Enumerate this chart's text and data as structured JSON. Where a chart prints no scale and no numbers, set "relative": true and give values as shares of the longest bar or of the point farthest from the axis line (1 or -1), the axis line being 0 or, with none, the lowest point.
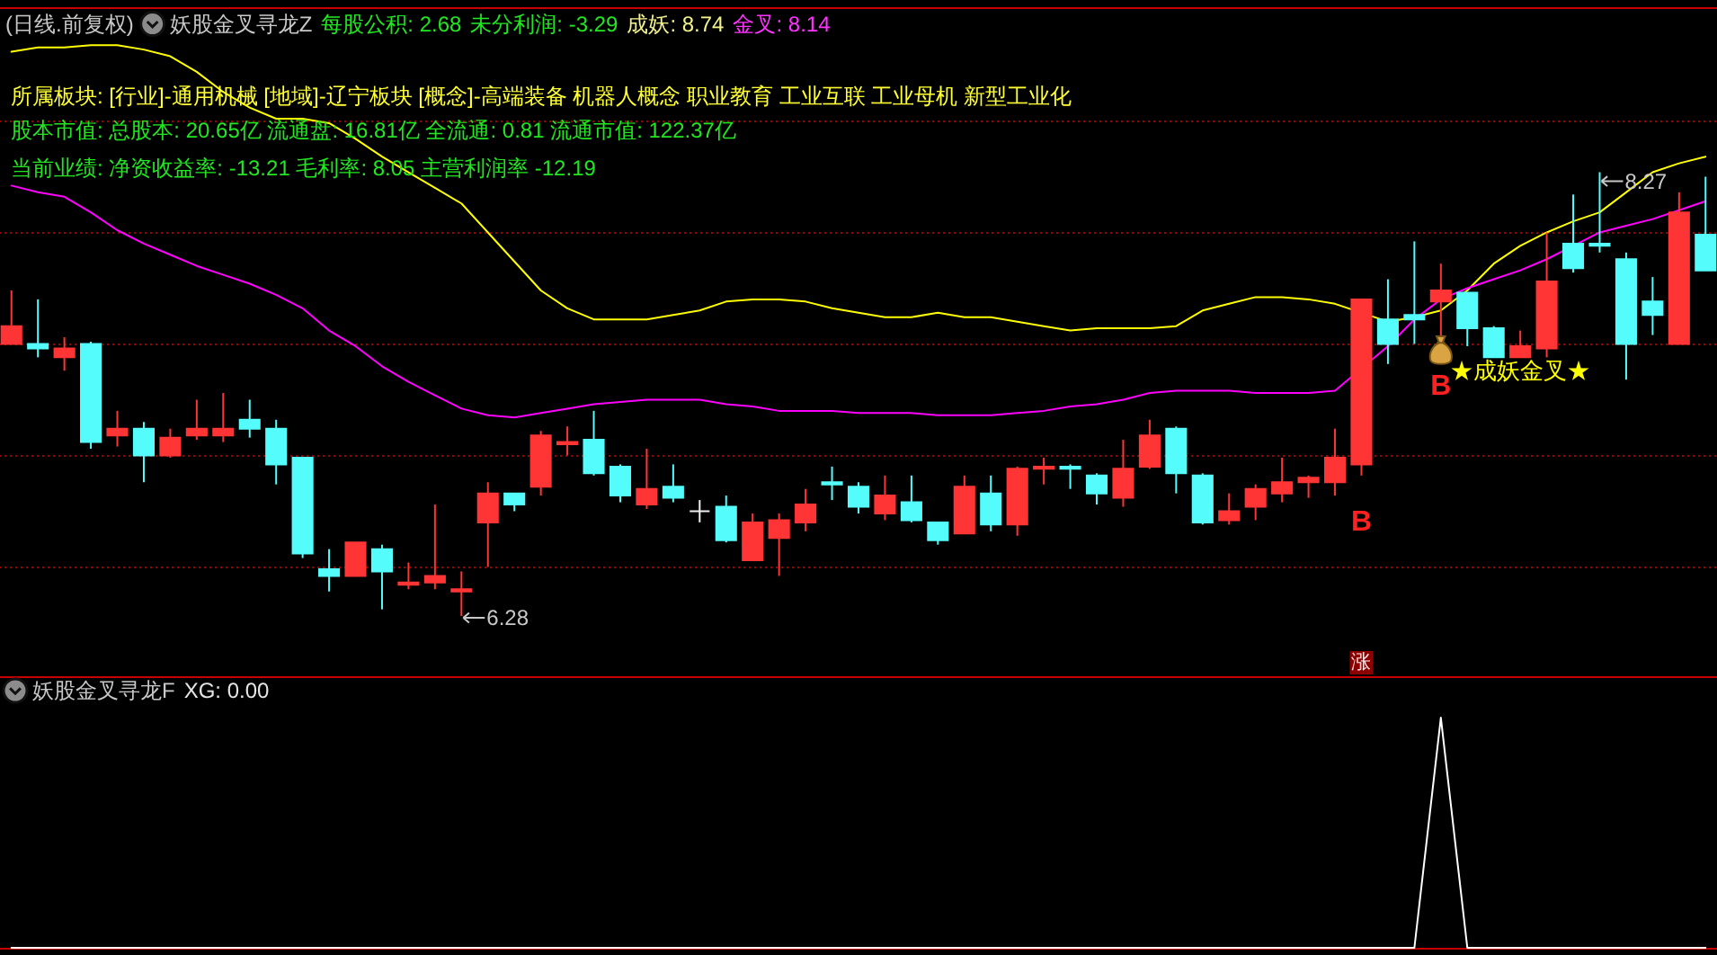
{
  "chart_data": [
    {
      "type": "candlestick",
      "title": "(日线.前复权)",
      "annotations": [
        "妖股金叉寻龙Z",
        "每股公积: 2.68",
        "未分利润: -3.29",
        "成妖: 8.74",
        "金叉: 8.14",
        "所属板块: [行业]-通用机械 [地域]-辽宁板块 [概念]-高端装备 机器人概念 职业教育 工业互联 工业母机 新型工业化",
        "股本市值: 总股本: 20.65亿 流通盘: 16.81亿 全流通: 0.81 流通市值: 122.37亿",
        "当前业绩: 净资收益率: -13.21 毛利率: 8.05 主营利润率 -12.19",
        "8.27",
        "6.28",
        "B",
        "B",
        "★成妖金叉★",
        "涨"
      ],
      "categories": [
        null,
        null,
        null,
        null,
        null,
        null,
        null,
        null,
        null,
        null,
        null,
        null,
        null,
        null,
        null,
        null,
        null,
        null,
        null,
        null,
        null,
        null,
        null,
        null,
        null,
        null,
        null,
        null,
        null,
        null,
        null,
        null,
        null,
        null,
        null,
        null,
        null,
        null,
        null,
        null,
        null,
        null,
        null,
        null,
        null,
        null,
        null,
        null,
        null,
        null,
        null,
        null,
        null,
        null,
        null,
        null,
        null,
        null,
        null,
        null,
        null,
        null,
        null,
        null,
        null
      ],
      "ohlc": [
        [
          7.5,
          7.74,
          7.5,
          7.58
        ],
        [
          7.5,
          7.7,
          7.44,
          7.48
        ],
        [
          7.44,
          7.53,
          7.38,
          7.48
        ],
        [
          7.5,
          7.51,
          7.03,
          7.06
        ],
        [
          7.09,
          7.2,
          7.04,
          7.12
        ],
        [
          7.12,
          7.15,
          6.88,
          7.0
        ],
        [
          7.0,
          7.12,
          6.99,
          7.08
        ],
        [
          7.09,
          7.25,
          7.07,
          7.12
        ],
        [
          7.09,
          7.28,
          7.06,
          7.12
        ],
        [
          7.16,
          7.25,
          7.08,
          7.12
        ],
        [
          7.12,
          7.16,
          6.87,
          6.96
        ],
        [
          6.99,
          6.99,
          6.54,
          6.56
        ],
        [
          6.49,
          6.58,
          6.39,
          6.46
        ],
        [
          6.46,
          6.61,
          6.46,
          6.61
        ],
        [
          6.58,
          6.6,
          6.31,
          6.48
        ],
        [
          6.42,
          6.52,
          6.4,
          6.43
        ],
        [
          6.43,
          6.78,
          6.4,
          6.46
        ],
        [
          6.39,
          6.48,
          6.28,
          6.4
        ],
        [
          6.7,
          6.88,
          6.5,
          6.83
        ],
        [
          6.83,
          6.83,
          6.75,
          6.78
        ],
        [
          6.86,
          7.11,
          6.82,
          7.09
        ],
        [
          7.05,
          7.13,
          7.0,
          7.06
        ],
        [
          7.07,
          7.2,
          6.91,
          6.92
        ],
        [
          6.95,
          6.96,
          6.79,
          6.82
        ],
        [
          6.78,
          7.03,
          6.76,
          6.85
        ],
        [
          6.86,
          6.96,
          6.79,
          6.81
        ],
        [
          6.75,
          6.8,
          6.7,
          6.75
        ],
        [
          6.77,
          6.82,
          6.61,
          6.62
        ],
        [
          6.53,
          6.74,
          6.53,
          6.7
        ],
        [
          6.63,
          6.74,
          6.46,
          6.71
        ],
        [
          6.7,
          6.85,
          6.66,
          6.78
        ],
        [
          6.88,
          6.95,
          6.8,
          6.87
        ],
        [
          6.86,
          6.88,
          6.74,
          6.77
        ],
        [
          6.74,
          6.91,
          6.71,
          6.82
        ],
        [
          6.79,
          6.91,
          6.7,
          6.71
        ],
        [
          6.7,
          6.7,
          6.6,
          6.62
        ],
        [
          6.65,
          6.91,
          6.65,
          6.86
        ],
        [
          6.83,
          6.91,
          6.66,
          6.69
        ],
        [
          6.69,
          6.95,
          6.64,
          6.94
        ],
        [
          6.94,
          6.99,
          6.87,
          6.95
        ],
        [
          6.95,
          6.96,
          6.85,
          6.94
        ],
        [
          6.91,
          6.92,
          6.78,
          6.83
        ],
        [
          6.81,
          7.07,
          6.77,
          6.94
        ],
        [
          6.95,
          7.16,
          6.94,
          7.09
        ],
        [
          7.12,
          7.13,
          6.83,
          6.92
        ],
        [
          6.91,
          6.92,
          6.69,
          6.7
        ],
        [
          6.71,
          6.83,
          6.69,
          6.75
        ],
        [
          6.77,
          6.87,
          6.71,
          6.85
        ],
        [
          6.83,
          6.99,
          6.79,
          6.88
        ],
        [
          6.88,
          6.91,
          6.81,
          6.9
        ],
        [
          6.88,
          7.12,
          6.82,
          6.99
        ],
        [
          6.96,
          7.7,
          6.91,
          7.7
        ],
        [
          7.61,
          7.79,
          7.41,
          7.5
        ],
        [
          7.63,
          7.96,
          7.5,
          7.61
        ],
        [
          7.69,
          7.86,
          7.53,
          7.74
        ],
        [
          7.73,
          7.73,
          7.49,
          7.57
        ],
        [
          7.57,
          7.58,
          7.44,
          7.44
        ],
        [
          7.44,
          7.56,
          7.44,
          7.49
        ],
        [
          7.48,
          8.0,
          7.44,
          7.78
        ],
        [
          7.95,
          8.17,
          7.82,
          7.84
        ],
        [
          7.95,
          8.27,
          7.91,
          7.94
        ],
        [
          7.88,
          7.91,
          7.34,
          7.5
        ],
        [
          7.69,
          7.8,
          7.54,
          7.63
        ],
        [
          7.5,
          8.18,
          7.5,
          8.09
        ],
        [
          7.99,
          8.25,
          7.83,
          7.83
        ]
      ],
      "series": [
        {
          "type": "line",
          "color": "#ffff00",
          "values": [
            8.81,
            8.83,
            8.83,
            8.84,
            8.84,
            8.82,
            8.79,
            8.72,
            8.63,
            8.56,
            8.51,
            8.51,
            8.49,
            8.42,
            8.34,
            8.27,
            8.2,
            8.13,
            8.0,
            7.87,
            7.74,
            7.66,
            7.61,
            7.61,
            7.61,
            7.63,
            7.65,
            7.69,
            7.7,
            7.7,
            7.69,
            7.66,
            7.64,
            7.62,
            7.62,
            7.64,
            7.62,
            7.62,
            7.6,
            7.58,
            7.56,
            7.57,
            7.57,
            7.57,
            7.58,
            7.65,
            7.68,
            7.71,
            7.71,
            7.7,
            7.68,
            null,
            7.6,
            7.62,
            7.65,
            7.74,
            7.86,
            7.94,
            8.0,
            8.05,
            8.09,
            8.18,
            8.27,
            8.31,
            8.34
          ]
        },
        {
          "type": "line",
          "color": "#ff00ff",
          "values": [
            8.21,
            8.18,
            8.16,
            8.09,
            8.01,
            7.95,
            7.9,
            7.85,
            7.81,
            7.77,
            7.72,
            7.66,
            7.56,
            7.49,
            7.4,
            7.33,
            7.27,
            7.21,
            7.18,
            7.17,
            7.19,
            7.21,
            7.23,
            7.24,
            7.25,
            7.25,
            7.25,
            7.23,
            7.22,
            7.2,
            7.2,
            7.2,
            7.19,
            7.19,
            7.19,
            7.18,
            7.18,
            7.18,
            7.19,
            7.2,
            7.22,
            7.23,
            7.25,
            7.28,
            7.29,
            7.29,
            7.29,
            7.28,
            7.28,
            7.28,
            7.29,
            null,
            7.49,
            7.61,
            7.7,
            7.75,
            7.79,
            7.83,
            7.88,
            7.94,
            8.0,
            8.03,
            8.06,
            8.1,
            8.14
          ]
        }
      ],
      "ylim": [
        6.01,
        9.01
      ],
      "yticks": [
        {
          "value": 6.5,
          "label": null
        },
        {
          "value": 7,
          "label": null
        },
        {
          "value": 7.5,
          "label": null
        },
        {
          "value": 8,
          "label": null
        },
        {
          "value": 8.5,
          "label": null
        }
      ],
      "grid": "y"
    },
    {
      "type": "line",
      "title": "妖股金叉寻龙F",
      "annotations": [
        "XG: 0.00"
      ],
      "categories": [
        null,
        null,
        null,
        null,
        null,
        null,
        null,
        null,
        null,
        null,
        null,
        null,
        null,
        null,
        null,
        null,
        null,
        null,
        null,
        null,
        null,
        null,
        null,
        null,
        null,
        null,
        null,
        null,
        null,
        null,
        null,
        null,
        null,
        null,
        null,
        null,
        null,
        null,
        null,
        null,
        null,
        null,
        null,
        null,
        null,
        null,
        null,
        null,
        null,
        null,
        null,
        null,
        null,
        null,
        null,
        null,
        null,
        null,
        null,
        null,
        null,
        null,
        null,
        null,
        null
      ],
      "series": [
        {
          "color": "#ffffff",
          "values": [
            0,
            0,
            0,
            0,
            0,
            0,
            0,
            0,
            0,
            0,
            0,
            0,
            0,
            0,
            0,
            0,
            0,
            0,
            0,
            0,
            0,
            0,
            0,
            0,
            0,
            0,
            0,
            0,
            0,
            0,
            0,
            0,
            0,
            0,
            0,
            0,
            0,
            0,
            0,
            0,
            0,
            0,
            0,
            0,
            0,
            0,
            0,
            0,
            0,
            0,
            0,
            0,
            0,
            0,
            1,
            0,
            0,
            0,
            0,
            0,
            0,
            0,
            0,
            0,
            0
          ]
        }
      ],
      "relative": true
    }
  ]
}
